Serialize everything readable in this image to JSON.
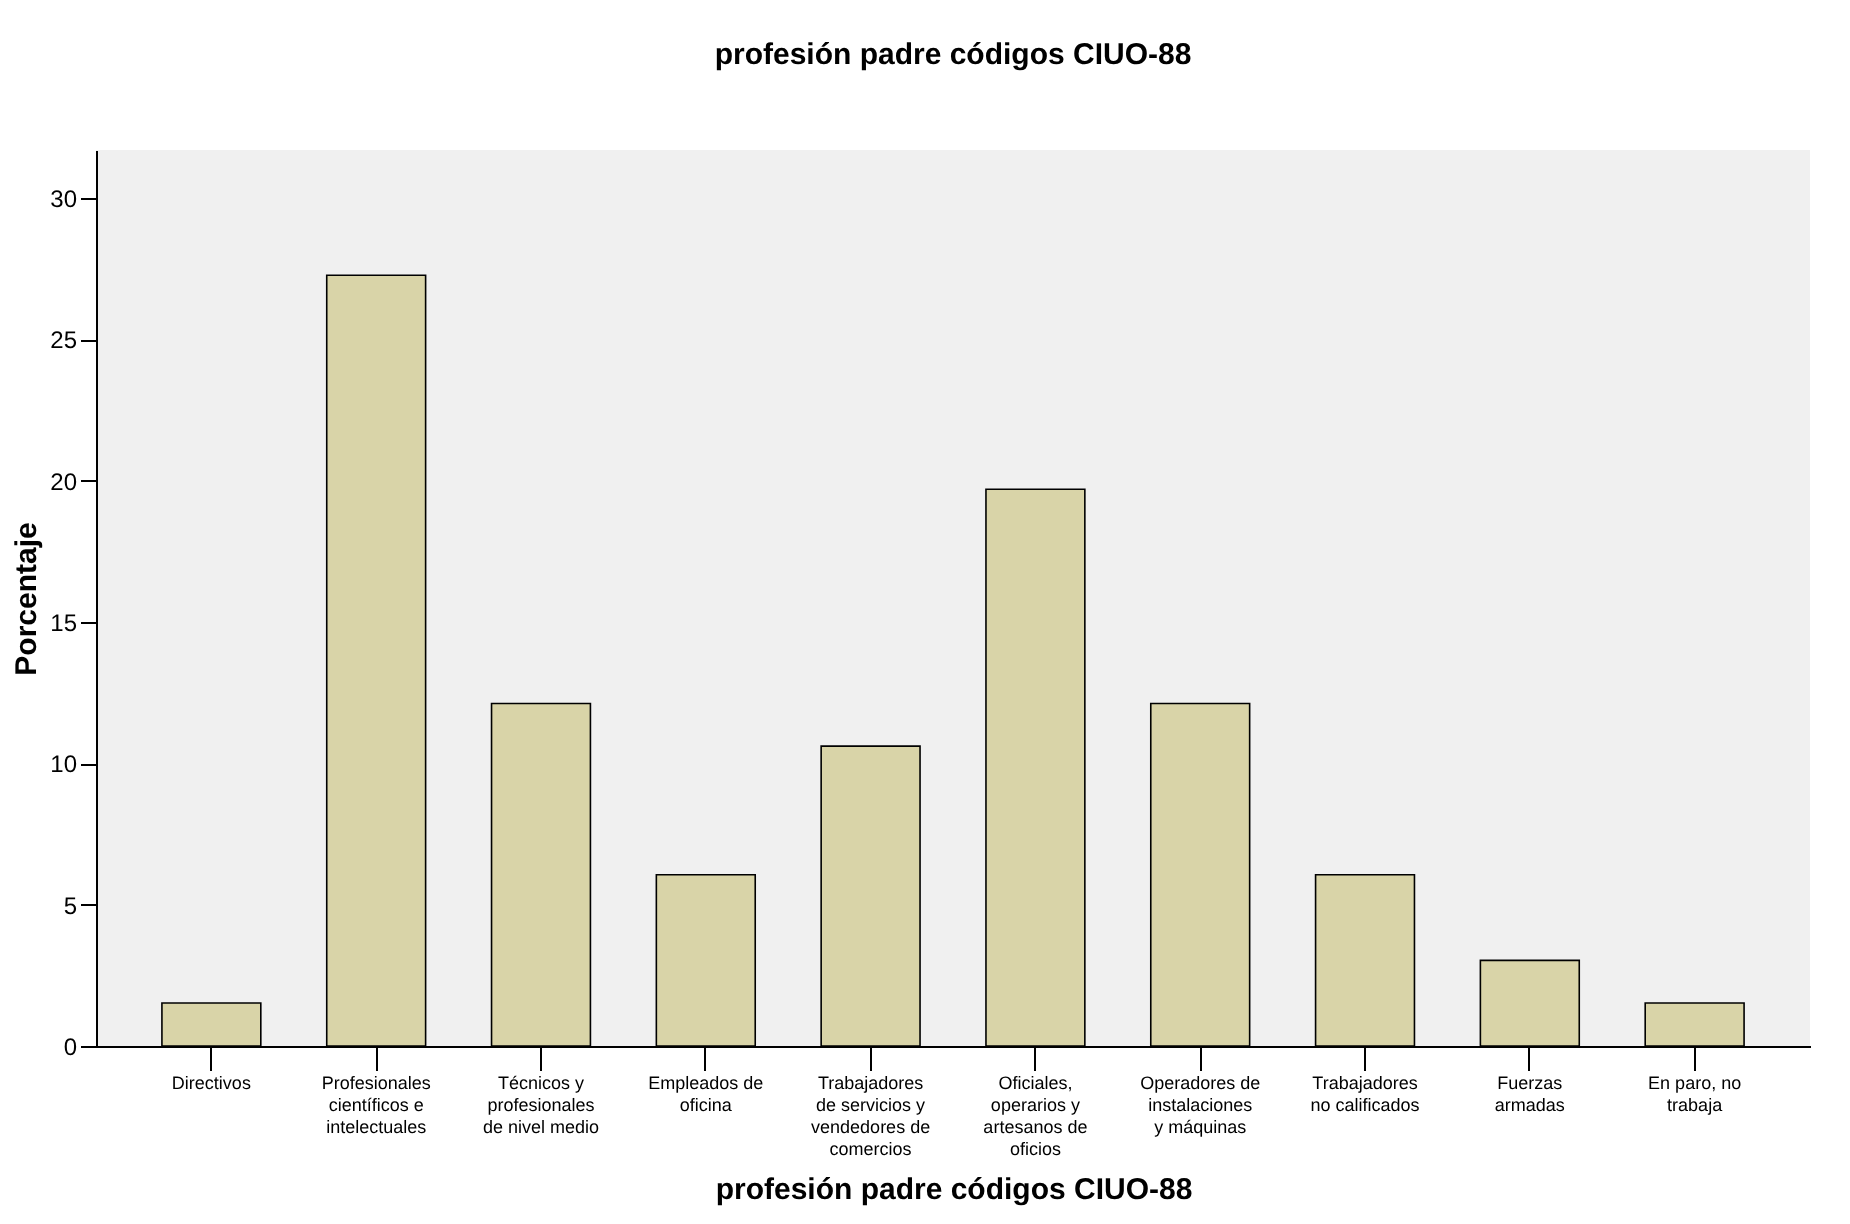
{
  "chart_data": {
    "type": "bar",
    "title": "profesión padre códigos CIUO-88",
    "xlabel": "profesión padre códigos CIUO-88",
    "ylabel": "Porcentaje",
    "categories": [
      "Directivos",
      "Profesionales científicos e intelectuales",
      "Técnicos y profesionales de nivel medio",
      "Empleados de oficina",
      "Trabajadores de servicios y vendedores de comercios",
      "Oficiales, operarios y artesanos de oficios",
      "Operadores de instalaciones y máquinas",
      "Trabajadores no calificados",
      "Fuerzas armadas",
      "En paro, no trabaja"
    ],
    "values": [
      1.52,
      27.27,
      12.12,
      6.06,
      10.61,
      19.7,
      12.12,
      6.06,
      3.03,
      1.52
    ],
    "color": "#d9d4a8",
    "ylim": [
      0,
      31.7
    ],
    "yticks": [
      0,
      5,
      10,
      15,
      20,
      25,
      30
    ]
  }
}
